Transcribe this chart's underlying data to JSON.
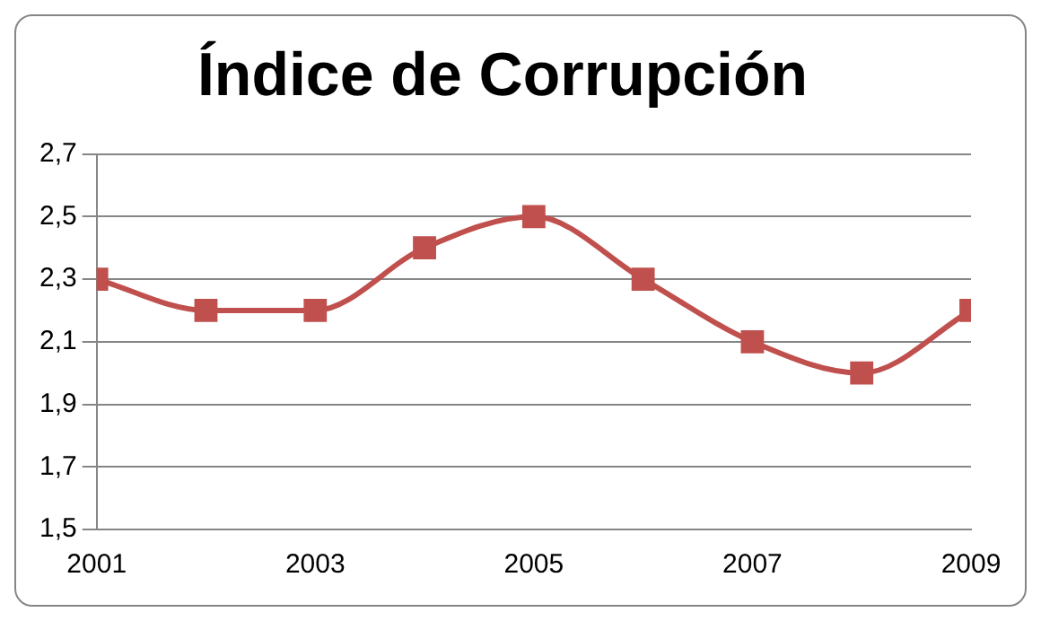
{
  "chart_data": {
    "type": "line",
    "title": "Índice de Corrupción",
    "x": [
      2001,
      2002,
      2003,
      2004,
      2005,
      2006,
      2007,
      2008,
      2009
    ],
    "series": [
      {
        "color": "#c0504d",
        "values": [
          2.3,
          2.2,
          2.2,
          2.4,
          2.5,
          2.3,
          2.1,
          2.0,
          2.2
        ]
      }
    ],
    "xlim": [
      2001,
      2009
    ],
    "xticks": [
      2001,
      2003,
      2005,
      2007,
      2009
    ],
    "ylim": [
      1.5,
      2.7
    ],
    "yticks": [
      {
        "value": 1.5,
        "label": "1,5"
      },
      {
        "value": 1.7,
        "label": "1,7"
      },
      {
        "value": 1.9,
        "label": "1,9"
      },
      {
        "value": 2.1,
        "label": "2,1"
      },
      {
        "value": 2.3,
        "label": "2,3"
      },
      {
        "value": 2.5,
        "label": "2,5"
      },
      {
        "value": 2.7,
        "label": "2,7"
      }
    ],
    "grid": "y",
    "legend": false,
    "marker": "square",
    "line_style": "solid"
  }
}
